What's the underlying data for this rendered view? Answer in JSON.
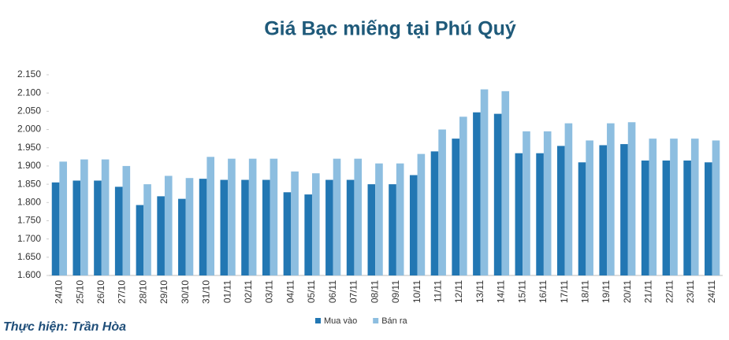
{
  "chart_data": {
    "type": "bar",
    "title": "Giá Bạc miếng tại Phú Quý",
    "source": "Thực hiện: Trần Hòa",
    "categories": [
      "24/10",
      "25/10",
      "26/10",
      "27/10",
      "28/10",
      "29/10",
      "30/10",
      "31/10",
      "01/11",
      "02/11",
      "03/11",
      "04/11",
      "05/11",
      "06/11",
      "07/11",
      "08/11",
      "09/11",
      "10/11",
      "11/11",
      "12/11",
      "13/11",
      "14/11",
      "15/11",
      "16/11",
      "17/11",
      "18/11",
      "19/11",
      "20/11",
      "21/11",
      "22/11",
      "23/11",
      "24/11"
    ],
    "series": [
      {
        "name": "Mua vào",
        "color": "#2277b3",
        "values": [
          1855,
          1860,
          1860,
          1843,
          1793,
          1817,
          1810,
          1865,
          1862,
          1862,
          1862,
          1828,
          1822,
          1862,
          1862,
          1850,
          1850,
          1875,
          1940,
          1975,
          2047,
          2043,
          1935,
          1935,
          1955,
          1910,
          1957,
          1960,
          1915,
          1915,
          1915,
          1910
        ]
      },
      {
        "name": "Bán ra",
        "color": "#8dbee0",
        "values": [
          1912,
          1918,
          1918,
          1900,
          1850,
          1873,
          1867,
          1925,
          1920,
          1920,
          1920,
          1885,
          1880,
          1920,
          1920,
          1907,
          1907,
          1933,
          2000,
          2035,
          2110,
          2105,
          1995,
          1995,
          2017,
          1970,
          2017,
          2020,
          1975,
          1975,
          1975,
          1970
        ]
      }
    ],
    "ylim": [
      1600,
      2150
    ],
    "yticks": [
      {
        "value": 1600,
        "label": "1.600"
      },
      {
        "value": 1650,
        "label": "1.650"
      },
      {
        "value": 1700,
        "label": "1.700"
      },
      {
        "value": 1750,
        "label": "1.750"
      },
      {
        "value": 1800,
        "label": "1.800"
      },
      {
        "value": 1850,
        "label": "1.850"
      },
      {
        "value": 1900,
        "label": "1.900"
      },
      {
        "value": 1950,
        "label": "1.950"
      },
      {
        "value": 2000,
        "label": "2.000"
      },
      {
        "value": 2050,
        "label": "2.050"
      },
      {
        "value": 2100,
        "label": "2.100"
      },
      {
        "value": 2150,
        "label": "2.150"
      }
    ],
    "grid": false,
    "legend": "bottom"
  }
}
